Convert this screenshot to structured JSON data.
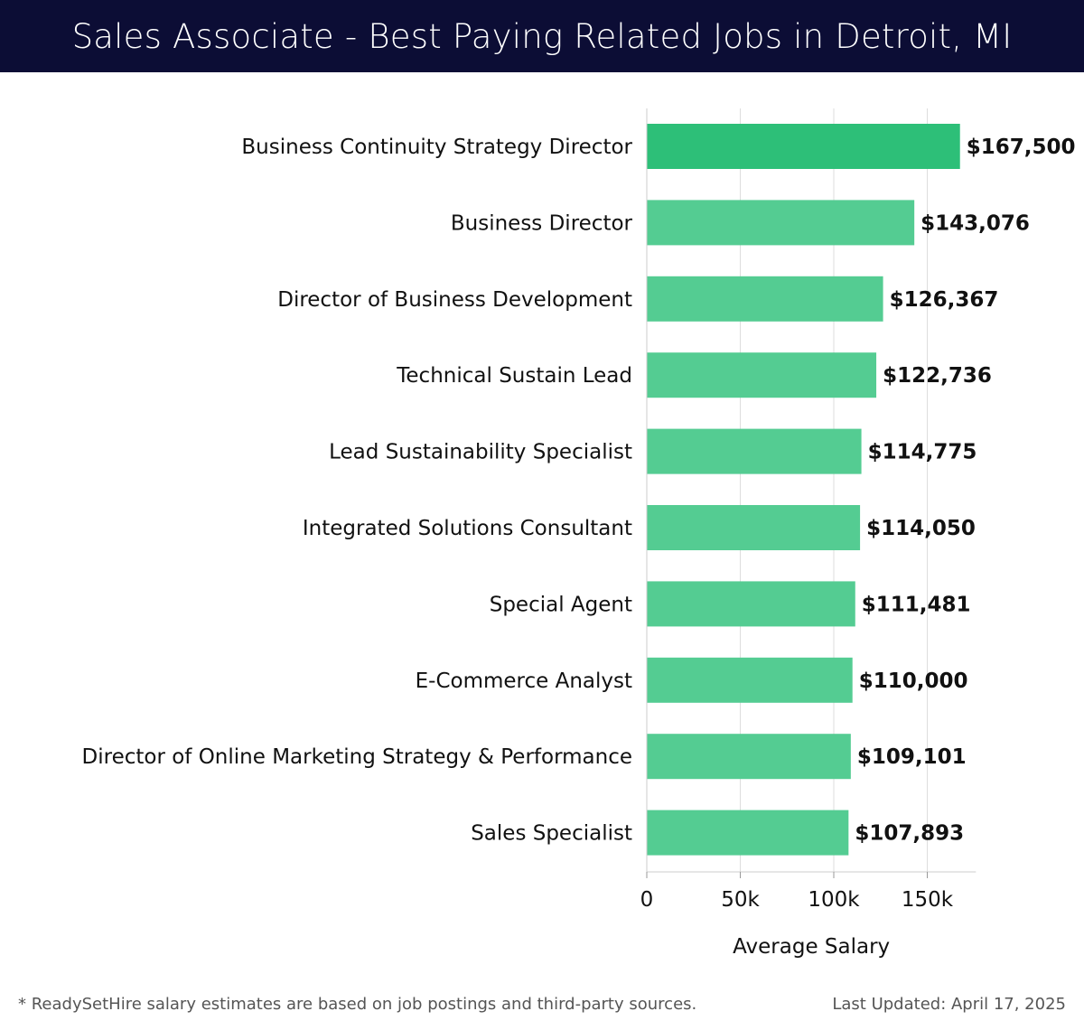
{
  "header": {
    "title": "Sales Associate - Best Paying Related Jobs in Detroit, MI"
  },
  "chart_data": {
    "type": "bar",
    "orientation": "horizontal",
    "categories": [
      "Business Continuity Strategy Director",
      "Business Director",
      "Director of Business Development",
      "Technical Sustain Lead",
      "Lead Sustainability Specialist",
      "Integrated Solutions Consultant",
      "Special Agent",
      "E-Commerce Analyst",
      "Director of Online Marketing Strategy & Performance",
      "Sales Specialist"
    ],
    "values": [
      167500,
      143076,
      126367,
      122736,
      114775,
      114050,
      111481,
      110000,
      109101,
      107893
    ],
    "value_labels": [
      "$167,500",
      "$143,076",
      "$126,367",
      "$122,736",
      "$114,775",
      "$114,050",
      "$111,481",
      "$110,000",
      "$109,101",
      "$107,893"
    ],
    "xlabel": "Average Salary",
    "xlim": [
      0,
      176000
    ],
    "xticks": [
      0,
      50000,
      100000,
      150000
    ],
    "xtick_labels": [
      "0",
      "50k",
      "100k",
      "150k"
    ],
    "grid": true,
    "colors": {
      "top_bar": "#2dbf78",
      "bar": "#54cc92",
      "grid": "#dddddd"
    }
  },
  "footer": {
    "note": "* ReadySetHire salary estimates are based on job postings and third-party sources.",
    "updated": "Last Updated: April 17, 2025"
  }
}
